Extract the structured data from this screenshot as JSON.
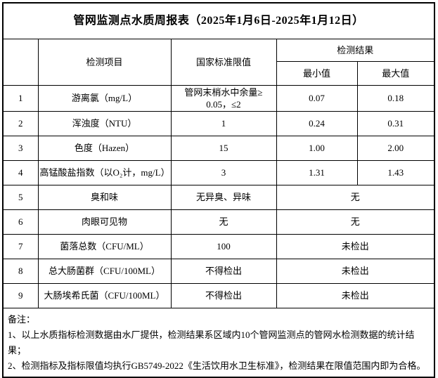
{
  "title": "管网监测点水质周报表（2025年1月6日-2025年1月12日）",
  "table": {
    "header": {
      "index_label": "",
      "item_label": "检测项目",
      "standard_label": "国家标准限值",
      "result_group_label": "检测结果",
      "min_label": "最小值",
      "max_label": "最大值"
    },
    "rows": [
      {
        "no": "1",
        "item": "游离氯（mg/L）",
        "standard": "管网末梢水中余量≥\n0.05，≤2",
        "min": "0.07",
        "max": "0.18"
      },
      {
        "no": "2",
        "item": "浑浊度（NTU）",
        "standard": "1",
        "min": "0.24",
        "max": "0.31"
      },
      {
        "no": "3",
        "item": "色度（Hazen）",
        "standard": "15",
        "min": "1.00",
        "max": "2.00"
      },
      {
        "no": "4",
        "item": "高锰酸盐指数（以O₂计，mg/L）",
        "standard": "3",
        "min": "1.31",
        "max": "1.43"
      },
      {
        "no": "5",
        "item": "臭和味",
        "standard": "无异臭、异味",
        "result": "无"
      },
      {
        "no": "6",
        "item": "肉眼可见物",
        "standard": "无",
        "result": "无"
      },
      {
        "no": "7",
        "item": "菌落总数（CFU/ML）",
        "standard": "100",
        "result": "未检出"
      },
      {
        "no": "8",
        "item": "总大肠菌群（CFU/100ML）",
        "standard": "不得检出",
        "result": "未检出"
      },
      {
        "no": "9",
        "item": "大肠埃希氏菌（CFU/100ML）",
        "standard": "不得检出",
        "result": "未检出"
      }
    ]
  },
  "notes": {
    "label": "备注：",
    "items": [
      "1、以上水质指标检测数据由水厂提供，检测结果系区域内10个管网监测点的管网水检测数据的统计结果；",
      "2、检测指标及指标限值均执行GB5749-2022《生活饮用水卫生标准》，检测结果在限值范围内即为合格。"
    ]
  },
  "colors": {
    "text": "#000000",
    "border": "#000000",
    "background": "#ffffff"
  }
}
